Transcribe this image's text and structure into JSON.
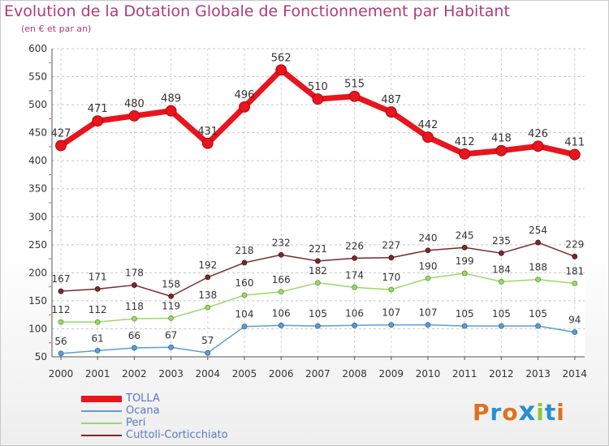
{
  "title": "Evolution de la Dotation Globale de Fonctionnement par Habitant",
  "subtitle": "(en € et par an)",
  "logo": {
    "text": "Proxiti",
    "colors": [
      "#e07020",
      "#2a8fd0",
      "#e07020",
      "#2a8fd0",
      "#8cc63f",
      "#2a8fd0",
      "#e07020"
    ]
  },
  "chart_data": {
    "type": "line",
    "x": [
      "2000",
      "2001",
      "2002",
      "2003",
      "2004",
      "2005",
      "2006",
      "2007",
      "2008",
      "2009",
      "2010",
      "2011",
      "2012",
      "2013",
      "2014"
    ],
    "ylim": [
      50,
      600
    ],
    "yticks": [
      50,
      100,
      150,
      200,
      250,
      300,
      350,
      400,
      450,
      500,
      550,
      600
    ],
    "grid": true,
    "legend_position": "bottom-left",
    "series": [
      {
        "name": "TOLLA",
        "color": "#e8141e",
        "values": [
          427,
          471,
          480,
          489,
          431,
          496,
          562,
          510,
          515,
          487,
          442,
          412,
          418,
          426,
          411
        ]
      },
      {
        "name": "Ocana",
        "color": "#5a9fd4",
        "values": [
          56,
          61,
          66,
          67,
          57,
          104,
          106,
          105,
          106,
          107,
          107,
          105,
          105,
          105,
          94
        ]
      },
      {
        "name": "Peri",
        "color": "#9ad86a",
        "values": [
          112,
          112,
          118,
          119,
          138,
          160,
          166,
          182,
          174,
          170,
          190,
          199,
          184,
          188,
          181
        ]
      },
      {
        "name": "Cuttoli-Corticchiato",
        "color": "#7a2a2a",
        "values": [
          167,
          171,
          178,
          158,
          192,
          218,
          232,
          221,
          226,
          227,
          240,
          245,
          235,
          254,
          229
        ]
      }
    ]
  }
}
